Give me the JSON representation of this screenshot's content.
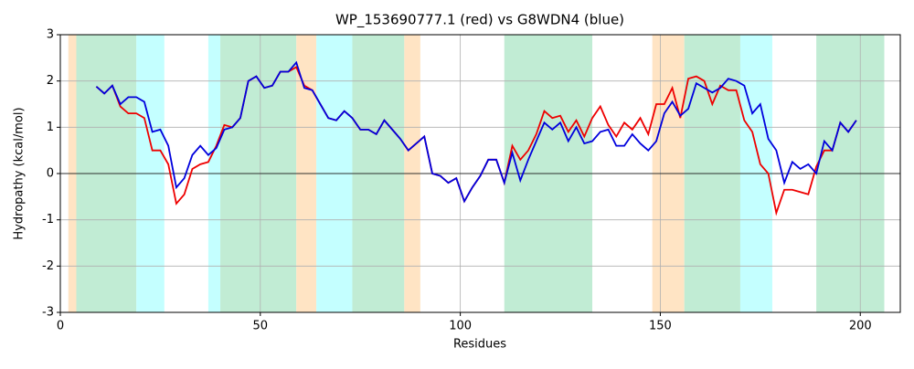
{
  "chart_data": {
    "type": "line",
    "title": "WP_153690777.1 (red) vs G8WDN4 (blue)",
    "x_label": "Residues",
    "y_label": "Hydropathy (kcal/mol)",
    "xlim": [
      0,
      210
    ],
    "ylim": [
      -3,
      3
    ],
    "xticks": [
      0,
      50,
      100,
      150,
      200
    ],
    "yticks": [
      -3,
      -2,
      -1,
      0,
      1,
      2,
      3
    ],
    "grid": true,
    "hline": 0,
    "hline_color": "#000000",
    "regions": [
      {
        "start": 2,
        "end": 4,
        "color": "#ffe4c4"
      },
      {
        "start": 4,
        "end": 19,
        "color": "#c1ecd4"
      },
      {
        "start": 19,
        "end": 26,
        "color": "#c4ffff"
      },
      {
        "start": 37,
        "end": 40,
        "color": "#c4ffff"
      },
      {
        "start": 40,
        "end": 59,
        "color": "#c1ecd4"
      },
      {
        "start": 59,
        "end": 64,
        "color": "#ffe4c4"
      },
      {
        "start": 64,
        "end": 73,
        "color": "#c4ffff"
      },
      {
        "start": 73,
        "end": 86,
        "color": "#c1ecd4"
      },
      {
        "start": 86,
        "end": 90,
        "color": "#ffe4c4"
      },
      {
        "start": 111,
        "end": 133,
        "color": "#c1ecd4"
      },
      {
        "start": 148,
        "end": 156,
        "color": "#ffe4c4"
      },
      {
        "start": 156,
        "end": 170,
        "color": "#c1ecd4"
      },
      {
        "start": 170,
        "end": 178,
        "color": "#c4ffff"
      },
      {
        "start": 189,
        "end": 206,
        "color": "#c1ecd4"
      }
    ],
    "x": [
      9,
      11,
      13,
      15,
      17,
      19,
      21,
      23,
      25,
      27,
      29,
      31,
      33,
      35,
      37,
      39,
      41,
      43,
      45,
      47,
      49,
      51,
      53,
      55,
      57,
      59,
      61,
      63,
      65,
      67,
      69,
      71,
      73,
      75,
      77,
      79,
      81,
      83,
      85,
      87,
      89,
      91,
      93,
      95,
      97,
      99,
      101,
      103,
      105,
      107,
      109,
      111,
      113,
      115,
      117,
      119,
      121,
      123,
      125,
      127,
      129,
      131,
      133,
      135,
      137,
      139,
      141,
      143,
      145,
      147,
      149,
      151,
      153,
      155,
      157,
      159,
      161,
      163,
      165,
      167,
      169,
      171,
      173,
      175,
      177,
      179,
      181,
      183,
      185,
      187,
      189,
      191,
      193,
      195,
      197,
      199
    ],
    "series": [
      {
        "color": "#ee0000",
        "values": [
          1.88,
          1.73,
          1.9,
          1.45,
          1.3,
          1.3,
          1.2,
          0.5,
          0.5,
          0.2,
          -0.65,
          -0.45,
          0.1,
          0.2,
          0.25,
          0.6,
          1.05,
          1.0,
          1.2,
          2.0,
          2.1,
          1.85,
          1.9,
          2.2,
          2.2,
          2.3,
          1.9,
          1.8,
          1.5,
          1.2,
          1.15,
          1.35,
          1.2,
          0.95,
          0.95,
          0.85,
          1.15,
          0.95,
          0.75,
          0.5,
          0.65,
          0.8,
          0.0,
          -0.05,
          -0.2,
          -0.1,
          -0.6,
          -0.3,
          -0.05,
          0.3,
          0.3,
          -0.2,
          0.6,
          0.3,
          0.5,
          0.85,
          1.35,
          1.2,
          1.25,
          0.9,
          1.15,
          0.8,
          1.2,
          1.45,
          1.05,
          0.8,
          1.1,
          0.95,
          1.2,
          0.85,
          1.5,
          1.5,
          1.85,
          1.2,
          2.05,
          2.1,
          2.0,
          1.5,
          1.9,
          1.8,
          1.8,
          1.15,
          0.9,
          0.2,
          0.0,
          -0.85,
          -0.35,
          -0.35,
          -0.4,
          -0.45,
          0.15,
          0.5,
          0.5,
          1.1,
          0.9,
          1.15
        ]
      },
      {
        "color": "#0000dd",
        "values": [
          1.88,
          1.73,
          1.9,
          1.5,
          1.65,
          1.65,
          1.55,
          0.9,
          0.95,
          0.6,
          -0.3,
          -0.1,
          0.4,
          0.6,
          0.4,
          0.55,
          0.95,
          1.0,
          1.2,
          2.0,
          2.1,
          1.85,
          1.9,
          2.2,
          2.2,
          2.4,
          1.85,
          1.8,
          1.5,
          1.2,
          1.15,
          1.35,
          1.2,
          0.95,
          0.95,
          0.85,
          1.15,
          0.95,
          0.75,
          0.5,
          0.65,
          0.8,
          0.0,
          -0.05,
          -0.2,
          -0.1,
          -0.6,
          -0.3,
          -0.05,
          0.3,
          0.3,
          -0.2,
          0.45,
          -0.15,
          0.3,
          0.7,
          1.1,
          0.95,
          1.1,
          0.7,
          1.0,
          0.65,
          0.7,
          0.9,
          0.95,
          0.6,
          0.6,
          0.85,
          0.65,
          0.5,
          0.7,
          1.3,
          1.55,
          1.25,
          1.4,
          1.95,
          1.85,
          1.75,
          1.85,
          2.05,
          2.0,
          1.9,
          1.3,
          1.5,
          0.75,
          0.5,
          -0.2,
          0.25,
          0.1,
          0.2,
          0.0,
          0.7,
          0.5,
          1.1,
          0.9,
          1.15
        ]
      }
    ]
  }
}
